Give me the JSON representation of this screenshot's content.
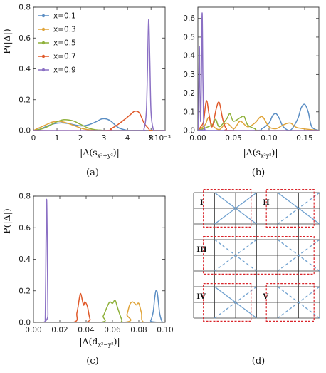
{
  "chart_data": [
    {
      "id": "a",
      "type": "line",
      "caption": "(a)",
      "ylabel": "P(|Δ|)",
      "xlabel": "|Δ(s",
      "xlabel_sub": "x²+y²",
      "xlabel_close": ")|",
      "axis_multiplier": "×10⁻³",
      "xlim": [
        0,
        5.6
      ],
      "ylim": [
        0,
        0.8
      ],
      "xticks": [
        0,
        1,
        2,
        3,
        4,
        5
      ],
      "xtick_labels": [
        "0",
        "1",
        "2",
        "3",
        "4",
        "5"
      ],
      "yticks": [
        0,
        0.2,
        0.4,
        0.6,
        0.8
      ],
      "ytick_labels": [
        "0.0",
        "0.2",
        "0.4",
        "0.6",
        "0.8"
      ],
      "legend": {
        "placement": "top-left",
        "entries": [
          "x=0.1",
          "x=0.3",
          "x=0.5",
          "x=0.7",
          "x=0.9"
        ]
      },
      "series": [
        {
          "name": "x=0.1",
          "color": "#5b8ec4",
          "x": [
            0,
            0.3,
            0.6,
            0.9,
            1.2,
            1.5,
            1.8,
            2.1,
            2.4,
            2.7,
            2.9,
            3.1,
            3.3,
            3.6,
            3.9,
            4.2,
            5.6
          ],
          "y": [
            0,
            0.01,
            0.03,
            0.045,
            0.05,
            0.045,
            0.035,
            0.03,
            0.04,
            0.06,
            0.075,
            0.075,
            0.06,
            0.02,
            0.004,
            0,
            0
          ]
        },
        {
          "name": "x=0.3",
          "color": "#e0a43a",
          "x": [
            0,
            0.2,
            0.5,
            0.8,
            1.0,
            1.2,
            1.5,
            1.8,
            2.1,
            2.4,
            2.7,
            3.0,
            3.3,
            5.6
          ],
          "y": [
            0,
            0.015,
            0.035,
            0.055,
            0.06,
            0.058,
            0.045,
            0.028,
            0.012,
            0.004,
            0.001,
            0,
            0,
            0
          ]
        },
        {
          "name": "x=0.5",
          "color": "#8fb13b",
          "x": [
            0,
            0.3,
            0.6,
            0.9,
            1.2,
            1.4,
            1.7,
            2.0,
            2.3,
            2.6,
            2.9,
            3.2,
            5.6
          ],
          "y": [
            0,
            0.008,
            0.025,
            0.05,
            0.068,
            0.07,
            0.062,
            0.04,
            0.018,
            0.006,
            0.002,
            0,
            0
          ]
        },
        {
          "name": "x=0.7",
          "color": "#e05a2b",
          "x": [
            0,
            3.0,
            3.3,
            3.6,
            3.9,
            4.1,
            4.3,
            4.5,
            4.7,
            4.9,
            5.0,
            5.6
          ],
          "y": [
            0,
            0,
            0.012,
            0.04,
            0.075,
            0.1,
            0.125,
            0.115,
            0.05,
            0.012,
            0,
            0
          ]
        },
        {
          "name": "x=0.9",
          "color": "#8b70c4",
          "x": [
            0,
            4.5,
            4.7,
            4.8,
            4.85,
            4.9,
            4.95,
            5.0,
            5.1,
            5.2,
            5.6
          ],
          "y": [
            0,
            0,
            0.01,
            0.12,
            0.4,
            0.72,
            0.45,
            0.12,
            0.005,
            0,
            0
          ]
        }
      ]
    },
    {
      "id": "b",
      "type": "line",
      "caption": "(b)",
      "ylabel": "",
      "xlabel": "|Δ(s",
      "xlabel_sub": "x²y²",
      "xlabel_close": ")|",
      "xlim": [
        0,
        0.17
      ],
      "ylim": [
        0,
        0.66
      ],
      "xticks": [
        0,
        0.05,
        0.1,
        0.15
      ],
      "xtick_labels": [
        "0.00",
        "0.05",
        "0.10",
        "0.15"
      ],
      "yticks": [
        0,
        0.1,
        0.2,
        0.3,
        0.4,
        0.5,
        0.6
      ],
      "ytick_labels": [
        "0.0",
        "0.1",
        "0.2",
        "0.3",
        "0.4",
        "0.5",
        "0.6"
      ],
      "series": [
        {
          "name": "x=0.1",
          "color": "#5b8ec4",
          "x": [
            0,
            0.08,
            0.09,
            0.1,
            0.105,
            0.11,
            0.115,
            0.12,
            0.13,
            0.14,
            0.145,
            0.15,
            0.155,
            0.16,
            0.17
          ],
          "y": [
            0,
            0,
            0.01,
            0.04,
            0.08,
            0.09,
            0.06,
            0.02,
            0.002,
            0.06,
            0.12,
            0.14,
            0.1,
            0.02,
            0
          ]
        },
        {
          "name": "x=0.3",
          "color": "#e0a43a",
          "x": [
            0,
            0.01,
            0.015,
            0.02,
            0.03,
            0.04,
            0.05,
            0.055,
            0.06,
            0.07,
            0.08,
            0.09,
            0.1,
            0.11,
            0.12,
            0.13,
            0.14,
            0.17
          ],
          "y": [
            0,
            0.03,
            0.07,
            0.03,
            0.005,
            0.04,
            0.01,
            0.03,
            0.05,
            0.02,
            0.04,
            0.075,
            0.02,
            0.01,
            0.03,
            0.04,
            0.015,
            0
          ]
        },
        {
          "name": "x=0.5",
          "color": "#8fb13b",
          "x": [
            0,
            0.02,
            0.025,
            0.03,
            0.04,
            0.045,
            0.05,
            0.06,
            0.065,
            0.07,
            0.08,
            0.09,
            0.17
          ],
          "y": [
            0,
            0.03,
            0.06,
            0.02,
            0.06,
            0.09,
            0.05,
            0.07,
            0.075,
            0.03,
            0.01,
            0,
            0
          ]
        },
        {
          "name": "x=0.7",
          "color": "#e05a2b",
          "x": [
            0,
            0.004,
            0.008,
            0.012,
            0.016,
            0.02,
            0.026,
            0.03,
            0.035,
            0.04,
            0.05,
            0.17
          ],
          "y": [
            0,
            0.02,
            0.05,
            0.16,
            0.08,
            0.02,
            0.12,
            0.15,
            0.06,
            0.01,
            0,
            0
          ]
        },
        {
          "name": "x=0.9",
          "color": "#8b70c4",
          "x": [
            0,
            0.001,
            0.002,
            0.003,
            0.004,
            0.005,
            0.006,
            0.007,
            0.008,
            0.009,
            0.01,
            0.012,
            0.17
          ],
          "y": [
            0,
            0.1,
            0.45,
            0.2,
            0.05,
            0.3,
            0.63,
            0.3,
            0.05,
            0.02,
            0.005,
            0,
            0
          ]
        }
      ]
    },
    {
      "id": "c",
      "type": "line",
      "caption": "(c)",
      "ylabel": "P(|Δ|)",
      "xlabel": "|Δ(d",
      "xlabel_sub": "x²−y²",
      "xlabel_close": ")|",
      "xlim": [
        0,
        0.1
      ],
      "ylim": [
        0,
        0.8
      ],
      "xticks": [
        0,
        0.02,
        0.04,
        0.06,
        0.08,
        0.1
      ],
      "xtick_labels": [
        "0.00",
        "0.02",
        "0.04",
        "0.06",
        "0.08",
        "0.10"
      ],
      "yticks": [
        0,
        0.2,
        0.4,
        0.6,
        0.8
      ],
      "ytick_labels": [
        "0.0",
        "0.2",
        "0.4",
        "0.6",
        "0.8"
      ],
      "series": [
        {
          "name": "x=0.1",
          "color": "#5b8ec4",
          "x": [
            0,
            0.087,
            0.089,
            0.091,
            0.092,
            0.093,
            0.094,
            0.095,
            0.096,
            0.098,
            0.1
          ],
          "y": [
            0,
            0,
            0.01,
            0.07,
            0.15,
            0.2,
            0.19,
            0.12,
            0.05,
            0,
            0
          ]
        },
        {
          "name": "x=0.3",
          "color": "#e0a43a",
          "x": [
            0,
            0.068,
            0.071,
            0.073,
            0.075,
            0.077,
            0.078,
            0.08,
            0.082,
            0.084,
            0.1
          ],
          "y": [
            0,
            0,
            0.05,
            0.11,
            0.13,
            0.12,
            0.11,
            0.12,
            0.06,
            0,
            0
          ]
        },
        {
          "name": "x=0.5",
          "color": "#8fb13b",
          "x": [
            0,
            0.05,
            0.053,
            0.056,
            0.058,
            0.06,
            0.062,
            0.064,
            0.067,
            0.07,
            0.1
          ],
          "y": [
            0,
            0,
            0.04,
            0.1,
            0.13,
            0.12,
            0.14,
            0.09,
            0.02,
            0,
            0
          ]
        },
        {
          "name": "x=0.7",
          "color": "#e05a2b",
          "x": [
            0,
            0.03,
            0.033,
            0.035,
            0.036,
            0.038,
            0.039,
            0.041,
            0.043,
            0.046,
            0.1
          ],
          "y": [
            0,
            0,
            0.06,
            0.16,
            0.18,
            0.11,
            0.13,
            0.1,
            0.02,
            0,
            0
          ]
        },
        {
          "name": "x=0.9",
          "color": "#8b70c4",
          "x": [
            0,
            0.008,
            0.009,
            0.0095,
            0.01,
            0.0105,
            0.011,
            0.012,
            0.1
          ],
          "y": [
            0,
            0,
            0.05,
            0.5,
            0.78,
            0.5,
            0.05,
            0,
            0
          ]
        }
      ]
    }
  ],
  "panel_d": {
    "caption": "(d)",
    "groups": [
      {
        "label": "I",
        "style": "solid"
      },
      {
        "label": "II",
        "style": "solid"
      },
      {
        "label": "III",
        "style": "dashed"
      },
      {
        "label": "IV",
        "style": "mixed"
      },
      {
        "label": "V",
        "style": "dashed"
      }
    ],
    "colors": {
      "grid": "#333333",
      "diag": "#6ea0cf",
      "box": "#d9242a"
    }
  }
}
